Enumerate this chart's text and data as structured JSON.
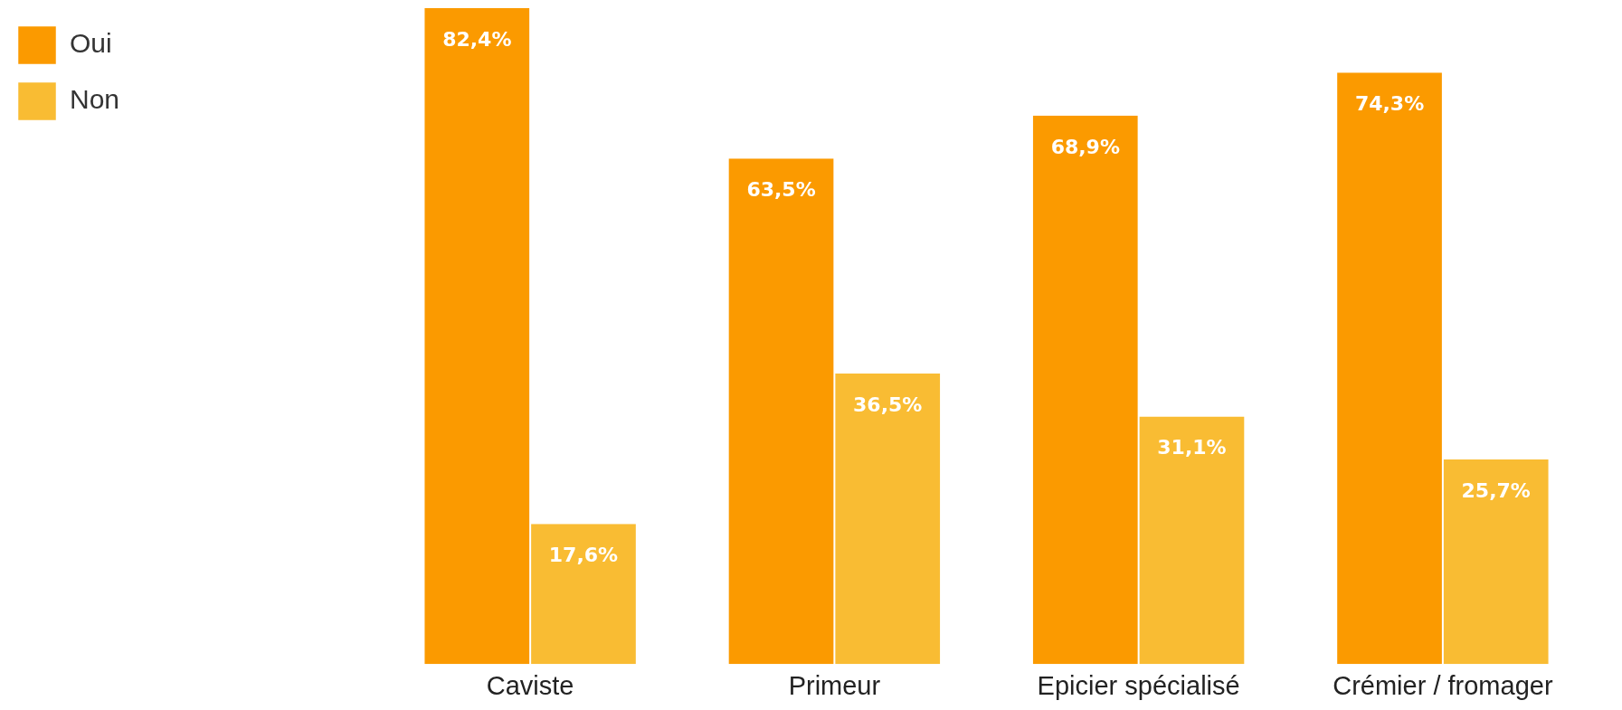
{
  "chart_data": {
    "type": "bar",
    "categories": [
      "Caviste",
      "Primeur",
      "Epicier spécialisé",
      "Crémier / fromager"
    ],
    "series": [
      {
        "name": "Oui",
        "color": "#fb9a00",
        "values": [
          82.4,
          63.5,
          68.9,
          74.3
        ],
        "value_labels": [
          "82,4%",
          "63,5%",
          "68,9%",
          "74,3%"
        ]
      },
      {
        "name": "Non",
        "color": "#f9bc33",
        "values": [
          17.6,
          36.5,
          31.1,
          25.7
        ],
        "value_labels": [
          "17,6%",
          "36,5%",
          "31,1%",
          "25,7%"
        ]
      }
    ],
    "legend": "top left",
    "grid": false
  }
}
